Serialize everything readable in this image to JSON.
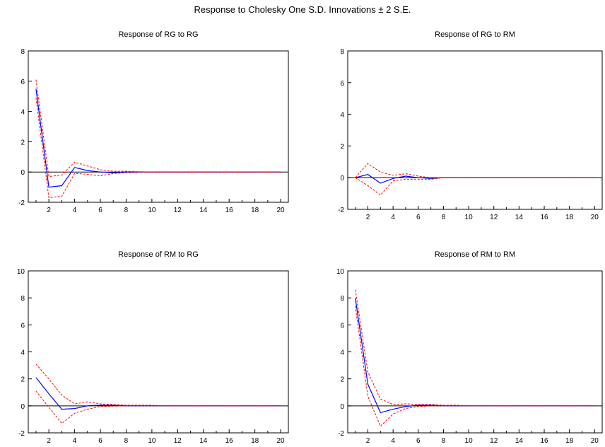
{
  "title": "Response to Cholesky One S.D. Innovations ± 2 S.E.",
  "colors": {
    "response": "#0000ff",
    "band": "#ff0000",
    "axis": "#000000",
    "zero": "#000000"
  },
  "chart_data": [
    {
      "type": "line",
      "title": "Response of RG to RG",
      "x": [
        1,
        2,
        3,
        4,
        5,
        6,
        7,
        8,
        9,
        10,
        11,
        12,
        13,
        14,
        15,
        16,
        17,
        18,
        19,
        20
      ],
      "xticks": [
        2,
        4,
        6,
        8,
        10,
        12,
        14,
        16,
        18,
        20
      ],
      "ylim": [
        -2,
        8
      ],
      "yticks": [
        -2,
        0,
        2,
        4,
        6,
        8
      ],
      "series": [
        {
          "role": "response",
          "values": [
            5.5,
            -1.0,
            -0.9,
            0.3,
            0.1,
            0.0,
            -0.05,
            0.0,
            0,
            0,
            0,
            0,
            0,
            0,
            0,
            0,
            0,
            0,
            0,
            0
          ]
        },
        {
          "role": "upper",
          "values": [
            6.1,
            -0.3,
            -0.2,
            0.65,
            0.4,
            0.15,
            0.05,
            0.05,
            0.02,
            0,
            0,
            0,
            0,
            0,
            0,
            0,
            0,
            0,
            0,
            0
          ]
        },
        {
          "role": "lower",
          "values": [
            4.9,
            -1.7,
            -1.6,
            -0.1,
            -0.15,
            -0.25,
            -0.1,
            -0.05,
            -0.02,
            0,
            0,
            0,
            0,
            0,
            0,
            0,
            0,
            0,
            0,
            0
          ]
        }
      ]
    },
    {
      "type": "line",
      "title": "Response of RG to RM",
      "x": [
        1,
        2,
        3,
        4,
        5,
        6,
        7,
        8,
        9,
        10,
        11,
        12,
        13,
        14,
        15,
        16,
        17,
        18,
        19,
        20
      ],
      "xticks": [
        2,
        4,
        6,
        8,
        10,
        12,
        14,
        16,
        18,
        20
      ],
      "ylim": [
        -2,
        8
      ],
      "yticks": [
        -2,
        0,
        2,
        4,
        6,
        8
      ],
      "series": [
        {
          "role": "response",
          "values": [
            0.0,
            0.2,
            -0.35,
            -0.05,
            0.1,
            0.0,
            -0.05,
            0,
            0,
            0,
            0,
            0,
            0,
            0,
            0,
            0,
            0,
            0,
            0,
            0
          ]
        },
        {
          "role": "upper",
          "values": [
            0.0,
            0.9,
            0.35,
            0.15,
            0.25,
            0.1,
            0.0,
            0,
            0,
            0,
            0,
            0,
            0,
            0,
            0,
            0,
            0,
            0,
            0,
            0
          ]
        },
        {
          "role": "lower",
          "values": [
            0.0,
            -0.5,
            -1.1,
            -0.2,
            -0.1,
            -0.1,
            -0.1,
            0,
            0,
            0,
            0,
            0,
            0,
            0,
            0,
            0,
            0,
            0,
            0,
            0
          ]
        }
      ]
    },
    {
      "type": "line",
      "title": "Response of RM to RG",
      "x": [
        1,
        2,
        3,
        4,
        5,
        6,
        7,
        8,
        9,
        10,
        11,
        12,
        13,
        14,
        15,
        16,
        17,
        18,
        19,
        20
      ],
      "xticks": [
        2,
        4,
        6,
        8,
        10,
        12,
        14,
        16,
        18,
        20
      ],
      "ylim": [
        -2,
        10
      ],
      "yticks": [
        -2,
        0,
        2,
        4,
        6,
        8,
        10
      ],
      "series": [
        {
          "role": "response",
          "values": [
            2.1,
            0.9,
            -0.25,
            -0.2,
            0.0,
            0.05,
            0.05,
            0.0,
            0,
            0,
            0,
            0,
            0,
            0,
            0,
            0,
            0,
            0,
            0,
            0
          ]
        },
        {
          "role": "upper",
          "values": [
            3.1,
            2.0,
            0.8,
            0.15,
            0.3,
            0.15,
            0.1,
            0.05,
            0.05,
            0.05,
            0,
            0,
            0,
            0,
            0,
            0,
            0,
            0,
            0,
            0
          ]
        },
        {
          "role": "lower",
          "values": [
            1.1,
            -0.1,
            -1.3,
            -0.55,
            -0.25,
            -0.05,
            -0.02,
            0.0,
            0,
            0,
            0,
            0,
            0,
            0,
            0,
            0,
            0,
            0,
            0,
            0
          ]
        }
      ]
    },
    {
      "type": "line",
      "title": "Response of RM to RM",
      "x": [
        1,
        2,
        3,
        4,
        5,
        6,
        7,
        8,
        9,
        10,
        11,
        12,
        13,
        14,
        15,
        16,
        17,
        18,
        19,
        20
      ],
      "xticks": [
        2,
        4,
        6,
        8,
        10,
        12,
        14,
        16,
        18,
        20
      ],
      "ylim": [
        -2,
        10
      ],
      "yticks": [
        -2,
        0,
        2,
        4,
        6,
        8,
        10
      ],
      "series": [
        {
          "role": "response",
          "values": [
            8.0,
            1.6,
            -0.5,
            -0.25,
            -0.05,
            0.05,
            0.05,
            0.0,
            0,
            0,
            0,
            0,
            0,
            0,
            0,
            0,
            0,
            0,
            0,
            0
          ]
        },
        {
          "role": "upper",
          "values": [
            8.6,
            2.5,
            0.5,
            0.1,
            0.15,
            0.1,
            0.1,
            0.05,
            0.05,
            0,
            0,
            0,
            0,
            0,
            0,
            0,
            0,
            0,
            0,
            0
          ]
        },
        {
          "role": "lower",
          "values": [
            7.4,
            0.7,
            -1.5,
            -0.6,
            -0.2,
            -0.05,
            0.0,
            0.0,
            0,
            0,
            0,
            0,
            0,
            0,
            0,
            0,
            0,
            0,
            0,
            0
          ]
        }
      ]
    }
  ]
}
